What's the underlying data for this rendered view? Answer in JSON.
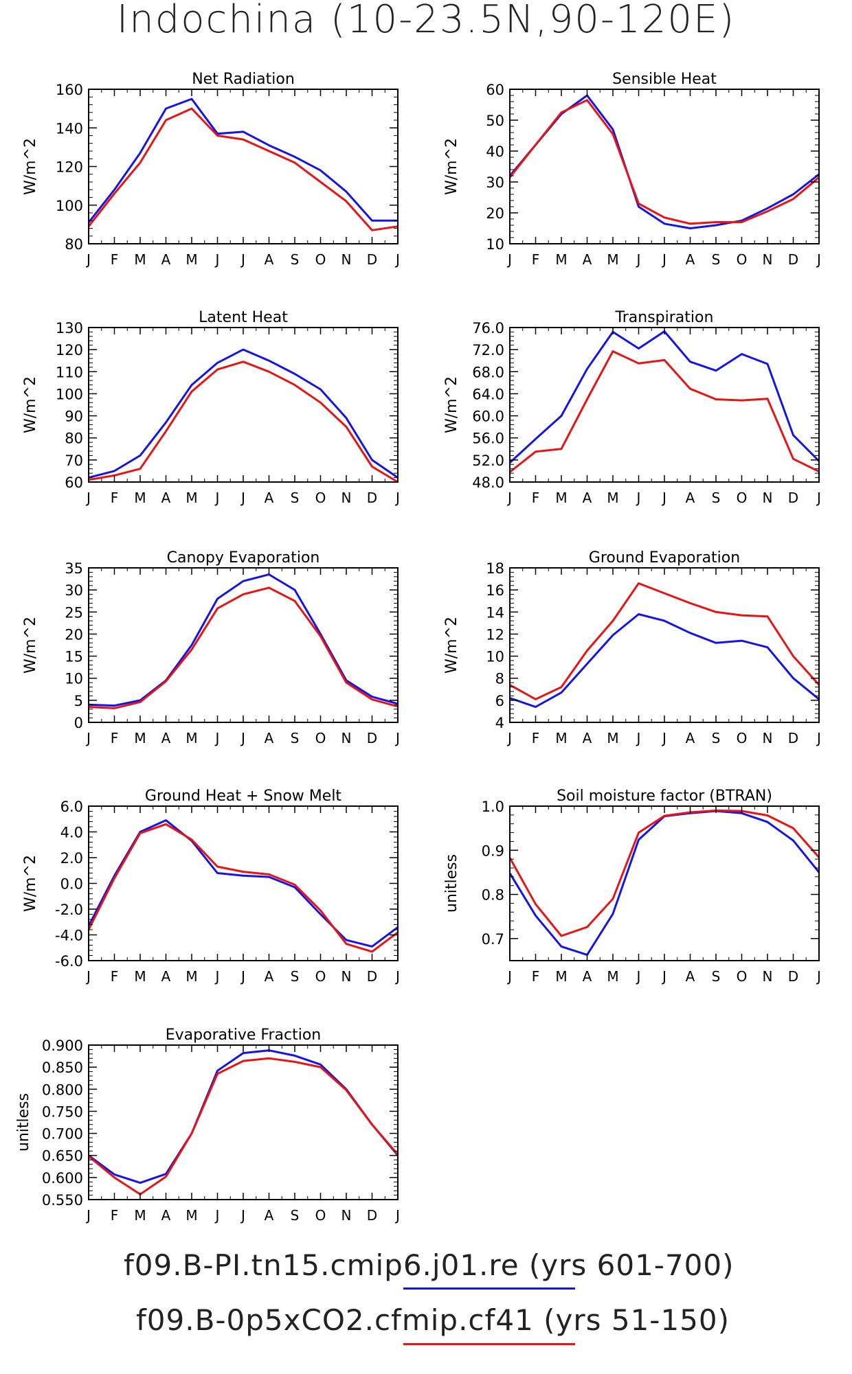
{
  "title": "Indochina (10-23.5N,90-120E)",
  "x_months": [
    "J",
    "F",
    "M",
    "A",
    "M",
    "J",
    "J",
    "A",
    "S",
    "O",
    "N",
    "D",
    "J"
  ],
  "colors": {
    "run1": "#1414e6",
    "run2": "#e61414",
    "axis": "#000000"
  },
  "legend": [
    {
      "label": "f09.B-PI.tn15.cmip6.j01.re (yrs 601-700)",
      "color": "#1414e6"
    },
    {
      "label": "f09.B-0p5xCO2.cfmip.cf41 (yrs 51-150)",
      "color": "#e61414"
    }
  ],
  "chart_data": [
    {
      "type": "line",
      "title": "Net Radiation",
      "ylabel": "W/m^2",
      "ylim": [
        80,
        160
      ],
      "yticks": [
        80,
        100,
        120,
        140,
        160
      ],
      "ytick_labels": [
        "80",
        "100",
        "120",
        "140",
        "160"
      ],
      "series": [
        {
          "values": [
            91,
            108,
            127,
            150,
            155,
            137,
            138,
            131,
            125,
            118,
            107,
            92,
            92
          ]
        },
        {
          "values": [
            89,
            106,
            122,
            144,
            150,
            136,
            134,
            128,
            122,
            112,
            102,
            87,
            89
          ]
        }
      ]
    },
    {
      "type": "line",
      "title": "Sensible Heat",
      "ylabel": "W/m^2",
      "ylim": [
        10,
        60
      ],
      "yticks": [
        10,
        20,
        30,
        40,
        50,
        60
      ],
      "ytick_labels": [
        "10",
        "20",
        "30",
        "40",
        "50",
        "60"
      ],
      "series": [
        {
          "values": [
            32,
            42,
            52,
            58,
            47,
            22,
            16.5,
            15,
            16,
            17.5,
            21.5,
            26,
            32.5
          ]
        },
        {
          "values": [
            31.5,
            42,
            52.5,
            56.5,
            45.5,
            23,
            18.5,
            16.5,
            17,
            17,
            20.5,
            24.5,
            31.5
          ]
        }
      ]
    },
    {
      "type": "line",
      "title": "Latent Heat",
      "ylabel": "W/m^2",
      "ylim": [
        60,
        130
      ],
      "yticks": [
        60,
        70,
        80,
        90,
        100,
        110,
        120,
        130
      ],
      "ytick_labels": [
        "60",
        "70",
        "80",
        "90",
        "100",
        "110",
        "120",
        "130"
      ],
      "series": [
        {
          "values": [
            62,
            65,
            72,
            87,
            104,
            114,
            120,
            115,
            109,
            102,
            89,
            70,
            62
          ]
        },
        {
          "values": [
            61,
            63,
            66,
            83,
            101,
            111,
            114.5,
            110,
            104,
            96,
            85,
            67,
            60
          ]
        }
      ]
    },
    {
      "type": "line",
      "title": "Transpiration",
      "ylabel": "W/m^2",
      "ylim": [
        48,
        76
      ],
      "yticks": [
        48,
        52,
        56,
        60,
        64,
        68,
        72,
        76
      ],
      "ytick_labels": [
        "48.0",
        "52.0",
        "56.0",
        "60.0",
        "64.0",
        "68.0",
        "72.0",
        "76.0"
      ],
      "series": [
        {
          "values": [
            51.5,
            55.8,
            60,
            68.5,
            75.2,
            72.2,
            75.3,
            69.8,
            68.2,
            71.2,
            69.4,
            56.5,
            51.8
          ]
        },
        {
          "values": [
            49.8,
            53.5,
            54,
            63,
            71.7,
            69.5,
            70.1,
            64.9,
            63,
            62.8,
            63.1,
            52.2,
            49.9
          ]
        }
      ]
    },
    {
      "type": "line",
      "title": "Canopy Evaporation",
      "ylabel": "W/m^2",
      "ylim": [
        0,
        35
      ],
      "yticks": [
        0,
        5,
        10,
        15,
        20,
        25,
        30,
        35
      ],
      "ytick_labels": [
        "0",
        "5",
        "10",
        "15",
        "20",
        "25",
        "30",
        "35"
      ],
      "series": [
        {
          "values": [
            4,
            3.8,
            5,
            9.5,
            17.5,
            28,
            32,
            33.5,
            30,
            20,
            9.5,
            5.8,
            4.2
          ]
        },
        {
          "values": [
            3.5,
            3.2,
            4.6,
            9.3,
            16.5,
            25.8,
            29,
            30.5,
            27.5,
            19.5,
            9,
            5.2,
            3.6
          ]
        }
      ]
    },
    {
      "type": "line",
      "title": "Ground Evaporation",
      "ylabel": "W/m^2",
      "ylim": [
        4,
        18
      ],
      "yticks": [
        4,
        6,
        8,
        10,
        12,
        14,
        16,
        18
      ],
      "ytick_labels": [
        "4",
        "6",
        "8",
        "10",
        "12",
        "14",
        "16",
        "18"
      ],
      "series": [
        {
          "values": [
            6.2,
            5.4,
            6.7,
            9.3,
            11.9,
            13.8,
            13.2,
            12.1,
            11.2,
            11.4,
            10.8,
            8,
            6.1
          ]
        },
        {
          "values": [
            7.4,
            6.1,
            7.2,
            10.5,
            13.2,
            16.6,
            15.7,
            14.8,
            14,
            13.7,
            13.6,
            10,
            7.4
          ]
        }
      ]
    },
    {
      "type": "line",
      "title": "Ground Heat + Snow Melt",
      "ylabel": "W/m^2",
      "ylim": [
        -6,
        6
      ],
      "yticks": [
        -6,
        -4,
        -2,
        0,
        2,
        4,
        6
      ],
      "ytick_labels": [
        "-6.0",
        "-4.0",
        "-2.0",
        "0.0",
        "2.0",
        "4.0",
        "6.0"
      ],
      "series": [
        {
          "values": [
            -3.3,
            0.6,
            4,
            4.9,
            3.3,
            0.8,
            0.6,
            0.5,
            -0.3,
            -2.4,
            -4.4,
            -4.9,
            -3.4
          ]
        },
        {
          "values": [
            -3.6,
            0.4,
            3.9,
            4.6,
            3.4,
            1.3,
            0.9,
            0.7,
            -0.1,
            -2.1,
            -4.7,
            -5.3,
            -3.8
          ]
        }
      ]
    },
    {
      "type": "line",
      "title": "Soil moisture factor (BTRAN)",
      "ylabel": "unitless",
      "ylim": [
        0.65,
        1.0
      ],
      "yticks": [
        0.7,
        0.8,
        0.9,
        1.0
      ],
      "ytick_labels": [
        "0.7",
        "0.8",
        "0.9",
        "1.0"
      ],
      "series": [
        {
          "values": [
            0.848,
            0.752,
            0.682,
            0.663,
            0.756,
            0.924,
            0.977,
            0.984,
            0.989,
            0.984,
            0.964,
            0.922,
            0.85
          ]
        },
        {
          "values": [
            0.883,
            0.778,
            0.706,
            0.726,
            0.79,
            0.94,
            0.978,
            0.986,
            0.99,
            0.989,
            0.979,
            0.95,
            0.884
          ]
        }
      ]
    },
    {
      "type": "line",
      "title": "Evaporative Fraction",
      "ylabel": "unitless",
      "ylim": [
        0.55,
        0.9
      ],
      "yticks": [
        0.55,
        0.6,
        0.65,
        0.7,
        0.75,
        0.8,
        0.85,
        0.9
      ],
      "ytick_labels": [
        "0.550",
        "0.600",
        "0.650",
        "0.700",
        "0.750",
        "0.800",
        "0.850",
        "0.900"
      ],
      "series": [
        {
          "values": [
            0.65,
            0.607,
            0.588,
            0.608,
            0.7,
            0.842,
            0.882,
            0.888,
            0.876,
            0.856,
            0.8,
            0.72,
            0.65
          ]
        },
        {
          "values": [
            0.648,
            0.6,
            0.562,
            0.602,
            0.7,
            0.835,
            0.864,
            0.87,
            0.862,
            0.85,
            0.798,
            0.72,
            0.652
          ]
        }
      ]
    }
  ]
}
